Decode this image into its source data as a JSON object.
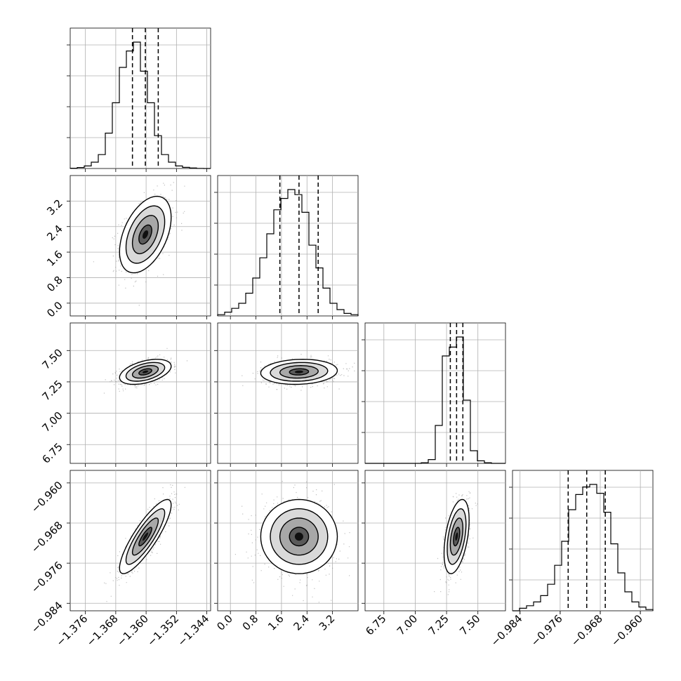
{
  "chart_data": {
    "type": "corner",
    "grid": true,
    "parameters": [
      {
        "range": [
          -1.38,
          -1.343
        ],
        "ticks": [
          -1.376,
          -1.368,
          -1.36,
          -1.352,
          -1.344
        ],
        "tick_labels": [
          "−1.376",
          "−1.368",
          "−1.360",
          "−1.352",
          "−1.344"
        ],
        "quantiles": [
          -1.3636,
          -1.3602,
          -1.3568
        ],
        "hist_counts": [
          0.002,
          0.008,
          0.02,
          0.05,
          0.11,
          0.28,
          0.52,
          0.8,
          0.93,
          1.0,
          0.77,
          0.52,
          0.26,
          0.11,
          0.05,
          0.02,
          0.009,
          0.004,
          0.001,
          0.0
        ]
      },
      {
        "range": [
          -0.4,
          4.0
        ],
        "ticks": [
          0.0,
          0.8,
          1.6,
          2.4,
          3.2
        ],
        "tick_labels": [
          "0.0",
          "0.8",
          "1.6",
          "2.4",
          "3.2"
        ],
        "quantiles": [
          1.55,
          2.15,
          2.75
        ],
        "hist_counts": [
          0.01,
          0.03,
          0.06,
          0.1,
          0.18,
          0.3,
          0.46,
          0.65,
          0.84,
          0.93,
          1.0,
          0.96,
          0.82,
          0.56,
          0.38,
          0.22,
          0.1,
          0.05,
          0.02,
          0.01
        ]
      },
      {
        "range": [
          6.6,
          7.72
        ],
        "ticks": [
          6.75,
          7.0,
          7.25,
          7.5
        ],
        "tick_labels": [
          "6.75",
          "7.00",
          "7.25",
          "7.50"
        ],
        "quantiles": [
          7.28,
          7.33,
          7.38
        ],
        "hist_counts": [
          0.0,
          0.0,
          0.0,
          0.0,
          0.0,
          0.0,
          0.0,
          0.0,
          0.005,
          0.03,
          0.3,
          0.85,
          0.92,
          1.0,
          0.5,
          0.1,
          0.02,
          0.005,
          0.0,
          0.0
        ]
      },
      {
        "range": [
          -0.9855,
          -0.9575
        ],
        "ticks": [
          -0.984,
          -0.976,
          -0.968,
          -0.96
        ],
        "tick_labels": [
          "−0.984",
          "−0.976",
          "−0.968",
          "−0.960"
        ],
        "quantiles": [
          -0.9744,
          -0.9707,
          -0.967
        ],
        "hist_counts": [
          0.0,
          0.02,
          0.04,
          0.07,
          0.12,
          0.21,
          0.36,
          0.55,
          0.8,
          0.92,
          0.98,
          1.0,
          0.93,
          0.78,
          0.53,
          0.3,
          0.15,
          0.07,
          0.03,
          0.01
        ]
      }
    ],
    "pairs": [
      {
        "row": 1,
        "col": 0,
        "rho": 0.45
      },
      {
        "row": 2,
        "col": 0,
        "rho": 0.45
      },
      {
        "row": 2,
        "col": 1,
        "rho": 0.1
      },
      {
        "row": 3,
        "col": 0,
        "rho": 0.85
      },
      {
        "row": 3,
        "col": 1,
        "rho": 0.0
      },
      {
        "row": 3,
        "col": 2,
        "rho": 0.45
      }
    ]
  }
}
